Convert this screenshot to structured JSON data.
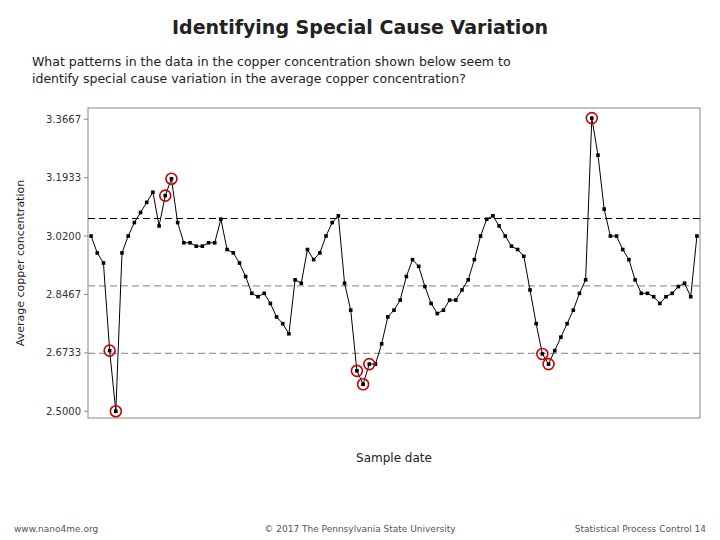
{
  "chart_data": {
    "type": "line",
    "title": "Identifying Special Cause Variation",
    "subtitle": [
      "What patterns in the data in the copper concentration shown below seem to",
      "identify special cause variation in the average copper concentration?"
    ],
    "annotations": [
      "www.nano4me.org",
      "© 2017 The Pennsylvania State University",
      "Statistical Process Control 14"
    ],
    "y_label": "Average copper concentration",
    "x_label": "Sample date",
    "categories": [
      null,
      null,
      null,
      null,
      null,
      null,
      null,
      null,
      null,
      null,
      null,
      null,
      null,
      null,
      null,
      null,
      null,
      null,
      null,
      null,
      null,
      null,
      null,
      null,
      null,
      null,
      null,
      null,
      null,
      null,
      null,
      null,
      null,
      null,
      null,
      null,
      null,
      null,
      null,
      null,
      null,
      null,
      null,
      null,
      null,
      null,
      null,
      null,
      null,
      null,
      null,
      null,
      null,
      null,
      null,
      null,
      null,
      null,
      null,
      null,
      null,
      null,
      null,
      null,
      null,
      null,
      null,
      null,
      null,
      null,
      null,
      null,
      null,
      null,
      null,
      null,
      null,
      null,
      null,
      null,
      null,
      null,
      null,
      null,
      null,
      null,
      null,
      null,
      null,
      null,
      null,
      null,
      null,
      null,
      null,
      null,
      null,
      null,
      null
    ],
    "values": [
      3.02,
      2.97,
      2.94,
      2.68,
      2.5,
      2.97,
      3.02,
      3.06,
      3.09,
      3.12,
      3.15,
      3.05,
      3.14,
      3.19,
      3.06,
      3.0,
      3.0,
      2.99,
      2.99,
      3.0,
      3.0,
      3.07,
      2.98,
      2.97,
      2.94,
      2.9,
      2.85,
      2.84,
      2.85,
      2.82,
      2.78,
      2.76,
      2.73,
      2.89,
      2.88,
      2.98,
      2.95,
      2.97,
      3.02,
      3.06,
      3.08,
      2.88,
      2.8,
      2.62,
      2.58,
      2.64,
      2.64,
      2.7,
      2.78,
      2.8,
      2.83,
      2.9,
      2.95,
      2.93,
      2.87,
      2.82,
      2.79,
      2.8,
      2.83,
      2.83,
      2.86,
      2.89,
      2.95,
      3.02,
      3.07,
      3.08,
      3.05,
      3.02,
      2.99,
      2.98,
      2.96,
      2.86,
      2.76,
      2.67,
      2.64,
      2.68,
      2.72,
      2.76,
      2.8,
      2.85,
      2.89,
      3.37,
      3.26,
      3.1,
      3.02,
      3.02,
      2.98,
      2.95,
      2.89,
      2.85,
      2.85,
      2.84,
      2.82,
      2.84,
      2.85,
      2.87,
      2.88,
      2.84,
      3.02
    ],
    "color": "#000000",
    "marker": "square",
    "reference_lines": [
      {
        "value": 3.072,
        "color": "#000000",
        "line_style": "dashed"
      },
      {
        "value": 2.872,
        "color": "#999999",
        "line_style": "dashed"
      },
      {
        "value": 2.672,
        "color": "#999999",
        "line_style": "dashed"
      }
    ],
    "highlights": {
      "indices": [
        3,
        4,
        12,
        13,
        43,
        44,
        45,
        73,
        74,
        81
      ],
      "color": "#cc0000"
    },
    "ylim": [
      2.48,
      3.4
    ],
    "yticks": [
      {
        "value": 2.5,
        "label": "2.5000"
      },
      {
        "value": 2.6733,
        "label": "2.6733"
      },
      {
        "value": 2.8467,
        "label": "2.8467"
      },
      {
        "value": 3.02,
        "label": "3.0200"
      },
      {
        "value": 3.1933,
        "label": "3.1933"
      },
      {
        "value": 3.3667,
        "label": "3.3667"
      }
    ],
    "tick_labels": "y",
    "grid": false
  }
}
